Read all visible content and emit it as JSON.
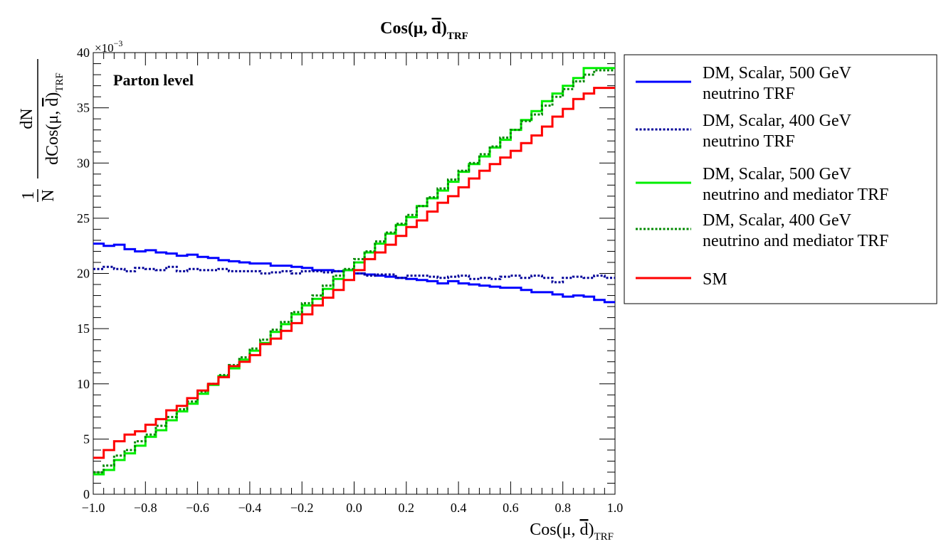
{
  "chart_data": {
    "type": "line",
    "drawstyle": "steps",
    "title": {
      "main": "Cos(μ, ",
      "dbar": "d",
      "close": ")",
      "sub": "TRF"
    },
    "xlabel": {
      "main": "Cos(μ,  ",
      "dbar": "d",
      "close": ")",
      "sub": "TRF"
    },
    "ylabel": {
      "one": "1",
      "N": "N",
      "dN": "dN",
      "denom_pre": "dCos(μ,  ",
      "dbar": "d",
      "close": ")",
      "sub": "TRF"
    },
    "y_exponent_label": "×10",
    "y_exponent_power": "−3",
    "annotation": "Parton level",
    "xlim": [
      -1.0,
      1.0
    ],
    "ylim": [
      0,
      40
    ],
    "y_scale_note": "values ×10^-3",
    "grid": false,
    "legend_position": "top-right outside plot",
    "x_ticks": [
      {
        "v": -1.0,
        "label": "−1.0"
      },
      {
        "v": -0.8,
        "label": "−0.8"
      },
      {
        "v": -0.6,
        "label": "−0.6"
      },
      {
        "v": -0.4,
        "label": "−0.4"
      },
      {
        "v": -0.2,
        "label": "−0.2"
      },
      {
        "v": 0.0,
        "label": "0.0"
      },
      {
        "v": 0.2,
        "label": "0.2"
      },
      {
        "v": 0.4,
        "label": "0.4"
      },
      {
        "v": 0.6,
        "label": "0.6"
      },
      {
        "v": 0.8,
        "label": "0.8"
      },
      {
        "v": 1.0,
        "label": "1.0"
      }
    ],
    "y_ticks": [
      {
        "v": 0,
        "label": "0"
      },
      {
        "v": 5,
        "label": "5"
      },
      {
        "v": 10,
        "label": "10"
      },
      {
        "v": 15,
        "label": "15"
      },
      {
        "v": 20,
        "label": "20"
      },
      {
        "v": 25,
        "label": "25"
      },
      {
        "v": 30,
        "label": "30"
      },
      {
        "v": 35,
        "label": "35"
      },
      {
        "v": 40,
        "label": "40"
      }
    ],
    "bin_edges_start": -1.0,
    "bin_width": 0.04,
    "series": [
      {
        "line1": "DM, Scalar, 500 GeV",
        "line2": "neutrino TRF",
        "color": "#0000ff",
        "dash": "solid",
        "values": [
          22.7,
          22.5,
          22.6,
          22.2,
          22.0,
          22.1,
          21.9,
          21.8,
          21.6,
          21.7,
          21.5,
          21.4,
          21.2,
          21.1,
          21.0,
          20.9,
          20.9,
          20.7,
          20.7,
          20.6,
          20.5,
          20.3,
          20.3,
          20.2,
          20.3,
          20.0,
          19.9,
          19.8,
          19.7,
          19.6,
          19.5,
          19.4,
          19.3,
          19.1,
          19.3,
          19.1,
          19.0,
          18.9,
          18.8,
          18.7,
          18.7,
          18.5,
          18.3,
          18.3,
          18.1,
          17.9,
          18.0,
          17.9,
          17.6,
          17.4
        ]
      },
      {
        "line1": "DM, Scalar, 400 GeV",
        "line2": "neutrino TRF",
        "color": "#000099",
        "dash": "dotted",
        "values": [
          20.4,
          20.6,
          20.4,
          20.2,
          20.5,
          20.4,
          20.3,
          20.6,
          20.2,
          20.4,
          20.3,
          20.3,
          20.4,
          20.2,
          20.2,
          20.2,
          20.0,
          20.1,
          20.2,
          20.0,
          20.2,
          20.2,
          20.1,
          20.2,
          20.3,
          20.0,
          19.8,
          19.9,
          19.9,
          19.6,
          19.8,
          19.8,
          19.7,
          19.6,
          19.7,
          19.8,
          19.5,
          19.6,
          19.5,
          19.7,
          19.8,
          19.6,
          19.8,
          19.6,
          19.2,
          19.6,
          19.7,
          19.6,
          19.8,
          19.6
        ]
      },
      {
        "line1": "DM, Scalar, 500 GeV",
        "line2": "neutrino and mediator TRF",
        "color": "#00ee00",
        "dash": "solid",
        "values": [
          1.8,
          2.2,
          3.1,
          3.7,
          4.4,
          5.2,
          5.8,
          6.7,
          7.5,
          8.2,
          9.1,
          9.9,
          10.7,
          11.4,
          12.2,
          13.0,
          13.7,
          14.7,
          15.4,
          16.3,
          17.1,
          17.7,
          18.6,
          19.5,
          20.3,
          21.0,
          21.9,
          22.7,
          23.6,
          24.4,
          25.1,
          26.1,
          26.8,
          27.5,
          28.3,
          29.2,
          29.9,
          30.6,
          31.4,
          32.1,
          33.0,
          33.9,
          34.7,
          35.6,
          36.3,
          37.0,
          37.7,
          38.6,
          38.6,
          38.6
        ]
      },
      {
        "line1": "DM, Scalar, 400 GeV",
        "line2": "neutrino and mediator TRF",
        "color": "#008800",
        "dash": "dotted",
        "values": [
          2.0,
          2.6,
          3.5,
          4.0,
          4.8,
          5.4,
          6.2,
          7.0,
          7.7,
          8.4,
          9.3,
          10.0,
          10.8,
          11.7,
          12.4,
          13.2,
          14.0,
          14.9,
          15.6,
          16.5,
          17.3,
          18.0,
          18.9,
          19.8,
          20.4,
          21.3,
          22.0,
          22.9,
          23.7,
          24.5,
          25.3,
          26.1,
          26.9,
          27.7,
          28.5,
          29.3,
          30.0,
          30.8,
          31.5,
          32.3,
          33.0,
          33.8,
          34.4,
          35.2,
          36.0,
          36.7,
          37.4,
          38.0,
          38.4,
          38.4
        ]
      },
      {
        "line1": "SM",
        "line2": "",
        "color": "#ff0000",
        "dash": "solid",
        "values": [
          3.3,
          4.0,
          4.8,
          5.4,
          5.7,
          6.3,
          6.8,
          7.6,
          8.0,
          8.7,
          9.4,
          10.0,
          10.6,
          11.6,
          12.0,
          12.6,
          13.6,
          14.1,
          14.8,
          15.5,
          16.3,
          17.1,
          17.8,
          18.5,
          19.4,
          20.3,
          21.3,
          21.9,
          22.6,
          23.4,
          24.2,
          24.8,
          25.6,
          26.4,
          27.0,
          27.8,
          28.6,
          29.3,
          29.9,
          30.5,
          31.1,
          31.8,
          32.5,
          33.3,
          34.2,
          34.9,
          35.8,
          36.3,
          36.8,
          36.8
        ]
      }
    ]
  }
}
